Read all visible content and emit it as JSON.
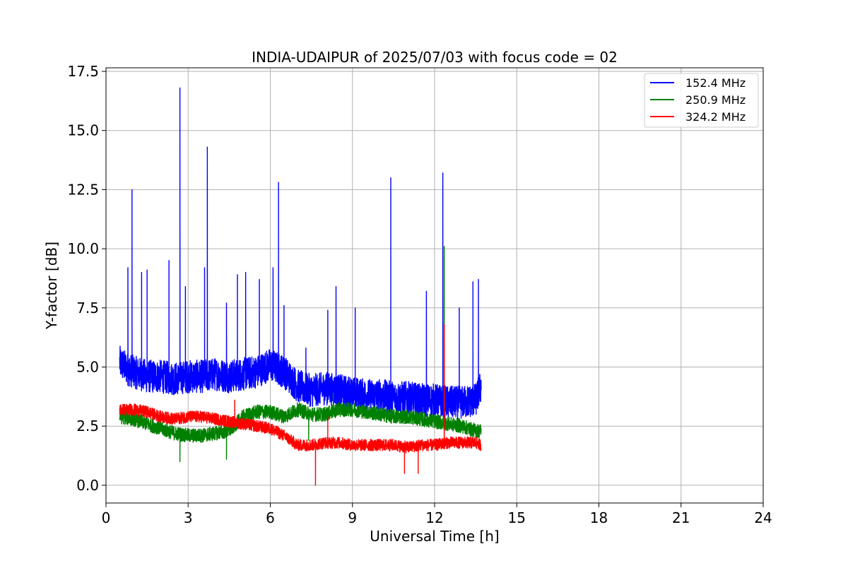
{
  "chart_data": {
    "type": "line",
    "title": "INDIA-UDAIPUR of 2025/07/03 with focus code = 02",
    "xlabel": "Universal Time [h]",
    "ylabel": "Y-factor [dB]",
    "xlim": [
      0,
      24
    ],
    "ylim": [
      -0.75,
      17.65
    ],
    "xticks": [
      0,
      3,
      6,
      9,
      12,
      15,
      18,
      21,
      24
    ],
    "yticks": [
      0.0,
      2.5,
      5.0,
      7.5,
      10.0,
      12.5,
      15.0,
      17.5
    ],
    "xtick_labels": [
      "0",
      "3",
      "6",
      "9",
      "12",
      "15",
      "18",
      "21",
      "24"
    ],
    "ytick_labels": [
      "0.0",
      "2.5",
      "5.0",
      "7.5",
      "10.0",
      "12.5",
      "15.0",
      "17.5"
    ],
    "grid": true,
    "legend_position": "top-right",
    "series": [
      {
        "name": "152.4 MHz",
        "color": "#0000ff",
        "x": [
          0.5,
          0.8,
          1.0,
          1.5,
          2.0,
          2.5,
          3.0,
          3.5,
          4.0,
          4.5,
          5.0,
          5.5,
          6.0,
          6.5,
          7.0,
          7.5,
          8.0,
          8.5,
          9.0,
          9.5,
          10.0,
          10.5,
          11.0,
          11.5,
          12.0,
          12.5,
          13.0,
          13.5,
          13.7
        ],
        "y": [
          5.2,
          4.9,
          4.8,
          4.6,
          4.6,
          4.5,
          4.6,
          4.6,
          4.7,
          4.6,
          4.7,
          4.8,
          5.1,
          4.8,
          4.2,
          4.0,
          4.1,
          4.0,
          3.9,
          3.8,
          3.8,
          3.7,
          3.7,
          3.6,
          3.6,
          3.5,
          3.5,
          3.6,
          4.2
        ],
        "noise": 0.7,
        "spikes": [
          {
            "x": 0.95,
            "y": 12.5
          },
          {
            "x": 0.8,
            "y": 9.2
          },
          {
            "x": 1.3,
            "y": 9.0
          },
          {
            "x": 1.5,
            "y": 9.1
          },
          {
            "x": 2.3,
            "y": 9.5
          },
          {
            "x": 2.7,
            "y": 16.8
          },
          {
            "x": 2.9,
            "y": 8.4
          },
          {
            "x": 3.7,
            "y": 14.3
          },
          {
            "x": 3.6,
            "y": 9.2
          },
          {
            "x": 4.4,
            "y": 7.7
          },
          {
            "x": 4.8,
            "y": 8.9
          },
          {
            "x": 5.1,
            "y": 9.0
          },
          {
            "x": 5.6,
            "y": 8.7
          },
          {
            "x": 6.1,
            "y": 9.2
          },
          {
            "x": 6.3,
            "y": 12.8
          },
          {
            "x": 6.5,
            "y": 7.6
          },
          {
            "x": 7.3,
            "y": 5.8
          },
          {
            "x": 8.1,
            "y": 7.4
          },
          {
            "x": 8.4,
            "y": 8.4
          },
          {
            "x": 9.1,
            "y": 7.5
          },
          {
            "x": 10.4,
            "y": 13.0
          },
          {
            "x": 11.7,
            "y": 8.2
          },
          {
            "x": 12.3,
            "y": 13.2
          },
          {
            "x": 12.9,
            "y": 7.5
          },
          {
            "x": 13.4,
            "y": 8.6
          },
          {
            "x": 13.6,
            "y": 8.7
          }
        ]
      },
      {
        "name": "250.9 MHz",
        "color": "#008000",
        "x": [
          0.5,
          1.0,
          1.5,
          2.0,
          2.5,
          3.0,
          3.5,
          4.0,
          4.5,
          5.0,
          5.5,
          6.0,
          6.5,
          7.0,
          7.5,
          8.0,
          8.5,
          9.0,
          9.5,
          10.0,
          10.5,
          11.0,
          11.5,
          12.0,
          12.5,
          13.0,
          13.5,
          13.7
        ],
        "y": [
          2.9,
          2.8,
          2.6,
          2.4,
          2.2,
          2.1,
          2.1,
          2.2,
          2.3,
          2.9,
          3.1,
          3.1,
          2.9,
          3.2,
          3.0,
          3.0,
          3.2,
          3.2,
          3.1,
          3.0,
          2.9,
          2.9,
          2.8,
          2.7,
          2.6,
          2.5,
          2.3,
          2.3
        ],
        "noise": 0.3,
        "spikes": [
          {
            "x": 2.7,
            "y": 1.0
          },
          {
            "x": 4.4,
            "y": 1.1
          },
          {
            "x": 12.35,
            "y": 10.1
          },
          {
            "x": 8.3,
            "y": 3.9
          },
          {
            "x": 7.4,
            "y": 1.9
          }
        ]
      },
      {
        "name": "324.2 MHz",
        "color": "#ff0000",
        "x": [
          0.5,
          1.0,
          1.5,
          2.0,
          2.5,
          3.0,
          3.5,
          4.0,
          4.5,
          5.0,
          5.5,
          6.0,
          6.5,
          7.0,
          7.5,
          8.0,
          8.5,
          9.0,
          9.5,
          10.0,
          10.5,
          11.0,
          11.5,
          12.0,
          12.5,
          13.0,
          13.5,
          13.7
        ],
        "y": [
          3.2,
          3.2,
          3.1,
          2.9,
          2.8,
          2.9,
          2.9,
          2.8,
          2.7,
          2.6,
          2.5,
          2.4,
          2.1,
          1.7,
          1.7,
          1.8,
          1.8,
          1.7,
          1.7,
          1.7,
          1.7,
          1.6,
          1.7,
          1.7,
          1.8,
          1.8,
          1.8,
          1.7
        ],
        "noise": 0.25,
        "spikes": [
          {
            "x": 7.65,
            "y": 0.0
          },
          {
            "x": 10.9,
            "y": 0.5
          },
          {
            "x": 11.4,
            "y": 0.5
          },
          {
            "x": 12.35,
            "y": 6.8
          },
          {
            "x": 4.7,
            "y": 3.6
          },
          {
            "x": 8.1,
            "y": 2.9
          }
        ]
      }
    ]
  }
}
